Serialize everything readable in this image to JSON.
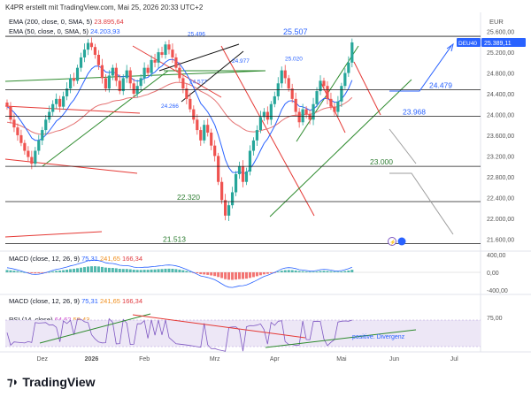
{
  "header": {
    "credit": "K4PR erstellt mit TradingView.com, Mai 25, 2026 20:33 UTC+2"
  },
  "legend": {
    "ema200_label": "EMA (200, close, 0, SMA, 5)",
    "ema200_value": "23.895,64",
    "ema50_label": "EMA (50, close, 0, SMA, 5)",
    "ema50_value": "24.203,93",
    "macd_label": "MACD (close, 12, 26, 9)",
    "macd_v1": "75,31",
    "macd_v2": "241,65",
    "macd_v3": "166,34",
    "macd2_label": "MACD (close, 12, 26, 9)",
    "macd2_v1": "75,31",
    "macd2_v2": "241,65",
    "macd2_v3": "166,34",
    "rsi_label": "RSI (14, close)",
    "rsi_v1": "64,62",
    "rsi_v2": "59,43"
  },
  "colors": {
    "up": "#26a69a",
    "down": "#ef5350",
    "ema200": "#e57373",
    "ema50": "#2962ff",
    "green_line": "#2e8b2e",
    "red_line": "#e53935",
    "blue_arrow": "#2962ff",
    "gray_arrow": "#9e9e9e",
    "price_label_bg": "#2962ff",
    "rsi_band": "#ede7f6",
    "rsi_line": "#7e57c2"
  },
  "chart_data": {
    "type": "candlestick",
    "symbol_label": "DEU40",
    "currency": "EUR",
    "last_price": "25.389,11",
    "y_ticks": [
      "25.600,00",
      "25.200,00",
      "24.800,00",
      "24.400,00",
      "24.000,00",
      "23.600,00",
      "23.200,00",
      "22.800,00",
      "22.400,00",
      "22.000,00",
      "21.600,00"
    ],
    "y_tick_values": [
      25600,
      25200,
      24800,
      24400,
      24000,
      23600,
      23200,
      22800,
      22400,
      22000,
      21600
    ],
    "ylim": [
      21400,
      25900
    ],
    "x_ticks": [
      "Dez",
      "2026",
      "Feb",
      "Mrz",
      "Apr",
      "Mai",
      "Jun",
      "Jul"
    ],
    "x_tick_index": [
      10,
      24,
      39,
      59,
      76,
      95,
      110,
      127
    ],
    "n_slots": 135,
    "closes": [
      24150,
      23900,
      23750,
      23600,
      23450,
      23300,
      23180,
      23050,
      23300,
      23500,
      23700,
      23900,
      24050,
      24200,
      24300,
      24150,
      24350,
      24500,
      24700,
      24650,
      24900,
      25100,
      25250,
      25380,
      25300,
      25150,
      24950,
      24700,
      24500,
      24750,
      24900,
      24650,
      24450,
      24700,
      24850,
      24600,
      24400,
      24550,
      24700,
      24900,
      24800,
      25050,
      25000,
      25200,
      25150,
      25350,
      25250,
      25100,
      24900,
      24700,
      24500,
      24300,
      24100,
      23900,
      23700,
      23500,
      23800,
      23650,
      23400,
      23200,
      22700,
      22350,
      22050,
      22250,
      22500,
      22850,
      23000,
      22700,
      22900,
      23300,
      23500,
      23700,
      23950,
      24050,
      23900,
      24200,
      24350,
      24600,
      24850,
      24700,
      24500,
      24300,
      24050,
      23850,
      24100,
      24000,
      23900,
      24200,
      24450,
      24650,
      24550,
      24300,
      24150,
      24050,
      24250,
      24550,
      24800,
      25000,
      25389
    ],
    "horizontal_levels": [
      {
        "label": "25.507",
        "value": 25507
      },
      {
        "label": "24.479",
        "value": 24479
      },
      {
        "label": "23.968",
        "value": 23968
      },
      {
        "label": "23.000",
        "value": 23000
      },
      {
        "label": "22.320",
        "value": 22320
      },
      {
        "label": "21.513",
        "value": 21513
      }
    ],
    "swing_labels": [
      {
        "label": "25.496",
        "value": 25496
      },
      {
        "label": "25.020",
        "value": 25020
      },
      {
        "label": "24.977",
        "value": 24977
      },
      {
        "label": "24.577",
        "value": 24577
      },
      {
        "label": "24.266",
        "value": 24266
      }
    ],
    "macd": {
      "y_ticks": [
        "400,00",
        "0,00",
        "-400,00"
      ],
      "y_tick_values": [
        400,
        0,
        -400
      ]
    },
    "rsi": {
      "y_ticks": [
        "75,00"
      ],
      "annotation": "positive. Divergenz"
    }
  }
}
